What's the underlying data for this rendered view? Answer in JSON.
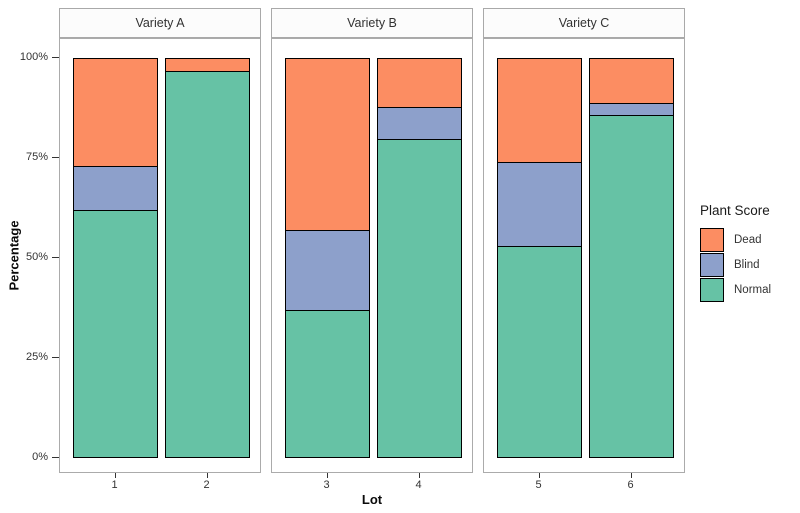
{
  "chart_data": {
    "type": "bar",
    "stacked": true,
    "orientation": "vertical",
    "xlabel": "Lot",
    "ylabel": "Percentage",
    "ylim": [
      0,
      100
    ],
    "grid": false,
    "yticks": [
      {
        "value": 0,
        "label": "0%"
      },
      {
        "value": 25,
        "label": "25%"
      },
      {
        "value": 50,
        "label": "50%"
      },
      {
        "value": 75,
        "label": "75%"
      },
      {
        "value": 100,
        "label": "100%"
      }
    ],
    "stack_order_top_to_bottom": [
      "Dead",
      "Blind",
      "Normal"
    ],
    "series_colors": {
      "Dead": "#FC8D62",
      "Blind": "#8DA0CB",
      "Normal": "#66C2A5"
    },
    "facets": [
      {
        "label": "Variety A",
        "bars": [
          {
            "lot": "1",
            "values": {
              "Normal": 62,
              "Blind": 11,
              "Dead": 27
            }
          },
          {
            "lot": "2",
            "values": {
              "Normal": 97,
              "Blind": 0,
              "Dead": 3
            }
          }
        ]
      },
      {
        "label": "Variety B",
        "bars": [
          {
            "lot": "3",
            "values": {
              "Normal": 37,
              "Blind": 20,
              "Dead": 43
            }
          },
          {
            "lot": "4",
            "values": {
              "Normal": 80,
              "Blind": 8,
              "Dead": 12
            }
          }
        ]
      },
      {
        "label": "Variety C",
        "bars": [
          {
            "lot": "5",
            "values": {
              "Normal": 53,
              "Blind": 21,
              "Dead": 26
            }
          },
          {
            "lot": "6",
            "values": {
              "Normal": 86,
              "Blind": 3,
              "Dead": 11
            }
          }
        ]
      }
    ],
    "legend": {
      "title": "Plant Score",
      "position": "right",
      "entries": [
        {
          "label": "Dead",
          "color": "#FC8D62"
        },
        {
          "label": "Blind",
          "color": "#8DA0CB"
        },
        {
          "label": "Normal",
          "color": "#66C2A5"
        }
      ]
    }
  },
  "styles": {
    "bar_border_color": "#000000",
    "panel_border_color": "#ABABAB",
    "strip_fill": "#FCFCFC",
    "tick_text_color": "#333333",
    "background": "#FFFFFF"
  }
}
